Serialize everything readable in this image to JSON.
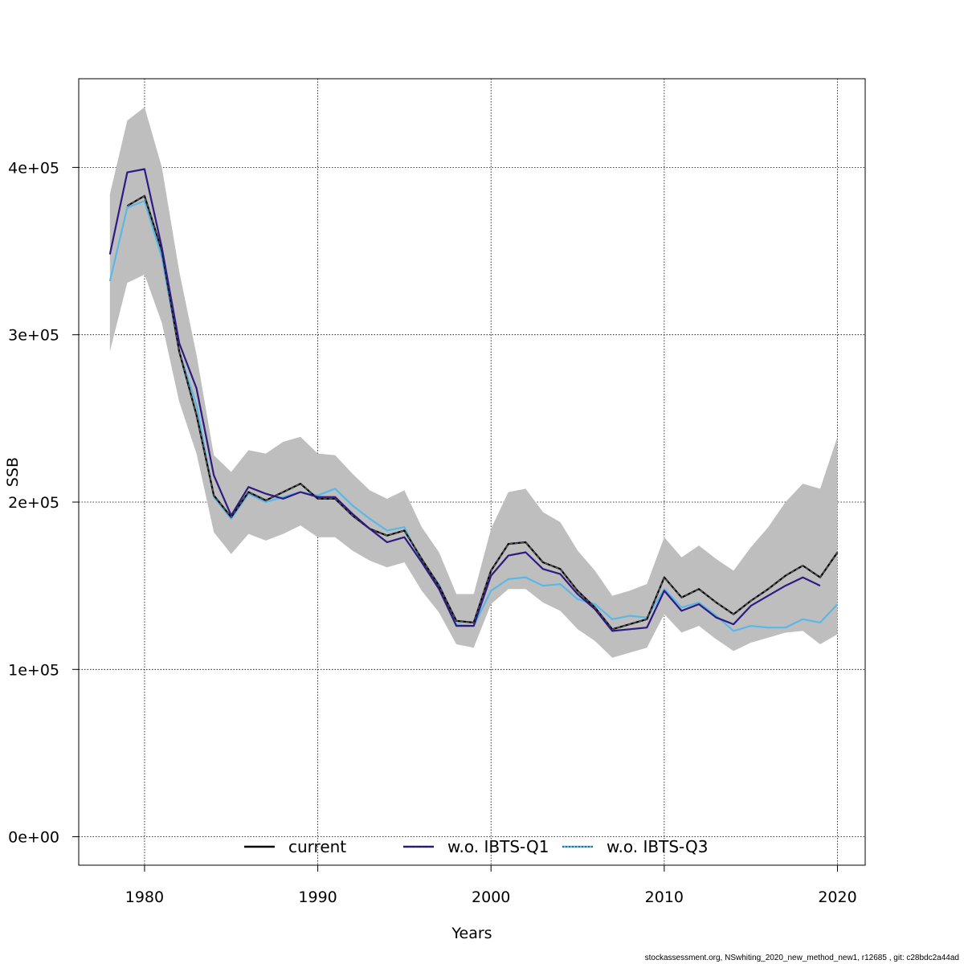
{
  "chart_data": {
    "type": "line",
    "xlabel": "Years",
    "ylabel": "SSB",
    "xlim": [
      1976.2,
      2021.6
    ],
    "ylim": [
      -17000,
      453000
    ],
    "x_ticks": [
      1980,
      1990,
      2000,
      2010,
      2020
    ],
    "x_tick_labels": [
      "1980",
      "1990",
      "2000",
      "2010",
      "2020"
    ],
    "y_ticks": [
      0,
      100000,
      200000,
      300000,
      400000
    ],
    "y_tick_labels": [
      "0e+00",
      "1e+05",
      "2e+05",
      "3e+05",
      "4e+05"
    ],
    "grid": true,
    "legend_position": "bottom",
    "legend": [
      "current",
      "w.o. IBTS-Q1",
      "w.o. IBTS-Q3"
    ],
    "x": [
      1978,
      1979,
      1980,
      1981,
      1982,
      1983,
      1984,
      1985,
      1986,
      1987,
      1988,
      1989,
      1990,
      1991,
      1992,
      1993,
      1994,
      1995,
      1996,
      1997,
      1998,
      1999,
      2000,
      2001,
      2002,
      2003,
      2004,
      2005,
      2006,
      2007,
      2008,
      2009,
      2010,
      2011,
      2012,
      2013,
      2014,
      2015,
      2016,
      2017,
      2018,
      2019,
      2020
    ],
    "confidence_band": {
      "color": "#bebebe",
      "upper": [
        384000,
        428000,
        436000,
        400000,
        338000,
        288000,
        228000,
        218000,
        231000,
        229000,
        236000,
        239000,
        229000,
        228000,
        217000,
        207000,
        202000,
        207000,
        185000,
        170000,
        145000,
        145000,
        184000,
        206000,
        208000,
        194000,
        188000,
        171000,
        159000,
        144000,
        147000,
        151000,
        179000,
        167000,
        174000,
        166000,
        159000,
        173000,
        185000,
        200000,
        211000,
        208000,
        239000
      ],
      "lower": [
        290000,
        331000,
        336000,
        307000,
        260000,
        229000,
        182000,
        169000,
        181000,
        177000,
        181000,
        186000,
        179000,
        179000,
        171000,
        165000,
        161000,
        164000,
        147000,
        134000,
        115000,
        113000,
        139000,
        148000,
        148000,
        140000,
        135000,
        124000,
        117000,
        107000,
        110000,
        113000,
        133000,
        122000,
        126000,
        118000,
        111000,
        116000,
        119000,
        122000,
        123000,
        115000,
        121000
      ]
    },
    "series": [
      {
        "name": "current",
        "color": "#000000",
        "style": "solid",
        "overlay": "dashed",
        "values": [
          null,
          377000,
          383000,
          350000,
          290000,
          252000,
          204000,
          191000,
          206000,
          201000,
          206000,
          211000,
          202000,
          202000,
          192000,
          184000,
          180000,
          183000,
          166000,
          150000,
          129000,
          128000,
          159000,
          175000,
          176000,
          164000,
          160000,
          147000,
          137000,
          124000,
          127000,
          130000,
          155000,
          143000,
          148000,
          140000,
          133000,
          141000,
          148000,
          156000,
          162000,
          155000,
          170000
        ]
      },
      {
        "name": "w.o. IBTS-Q1",
        "color": "#2e1a80",
        "style": "solid",
        "values": [
          348000,
          397000,
          399000,
          352000,
          295000,
          268000,
          216000,
          192000,
          209000,
          205000,
          202000,
          206000,
          203000,
          203000,
          193000,
          184000,
          176000,
          179000,
          164000,
          148000,
          126000,
          126000,
          156000,
          168000,
          170000,
          160000,
          157000,
          145000,
          136000,
          123000,
          124000,
          125000,
          147000,
          135000,
          139000,
          131000,
          127000,
          138000,
          144000,
          150000,
          155000,
          150000,
          null
        ]
      },
      {
        "name": "w.o. IBTS-Q3",
        "color": "#5ab8e6",
        "style": "solid",
        "values": [
          332000,
          376000,
          380000,
          346000,
          290000,
          258000,
          203000,
          190000,
          205000,
          200000,
          203000,
          206000,
          204000,
          208000,
          198000,
          190000,
          183000,
          185000,
          164000,
          151000,
          127000,
          126000,
          147000,
          154000,
          155000,
          150000,
          151000,
          142000,
          139000,
          130000,
          132000,
          131000,
          148000,
          137000,
          140000,
          132000,
          123000,
          126000,
          125000,
          125000,
          130000,
          128000,
          139000
        ]
      }
    ]
  },
  "footer": "stockassessment.org, NSwhiting_2020_new_method_new1, r12685 , git: c28bdc2a44ad"
}
